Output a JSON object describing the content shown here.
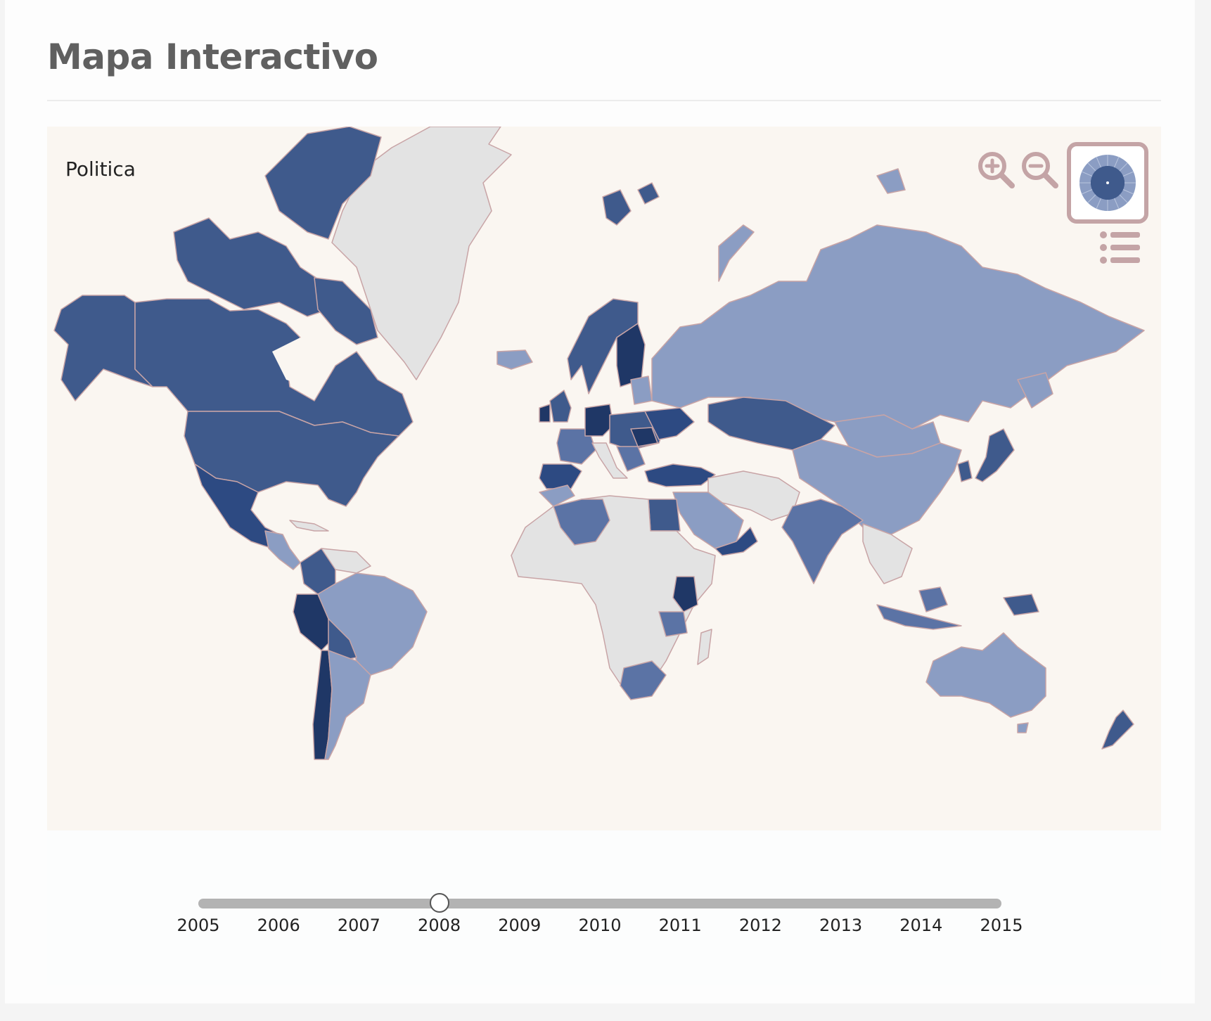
{
  "page": {
    "title": "Mapa Interactivo"
  },
  "map": {
    "layer_label": "Politica",
    "colors": {
      "ocean": "#faf6f1",
      "no_data": "#e3e3e3",
      "level_1": "#8b9dc3",
      "level_2": "#5b73a5",
      "level_3": "#3f5a8c",
      "level_4": "#1f3766",
      "border": "#c8a4a6"
    },
    "controls": {
      "zoom_in_icon": "zoom-in-icon",
      "zoom_out_icon": "zoom-out-icon",
      "minimap_icon": "minimap-globe-icon",
      "legend_icon": "list-icon"
    }
  },
  "timeline": {
    "years": [
      "2005",
      "2006",
      "2007",
      "2008",
      "2009",
      "2010",
      "2011",
      "2012",
      "2013",
      "2014",
      "2015"
    ],
    "selected": "2008",
    "selected_index": 3
  }
}
